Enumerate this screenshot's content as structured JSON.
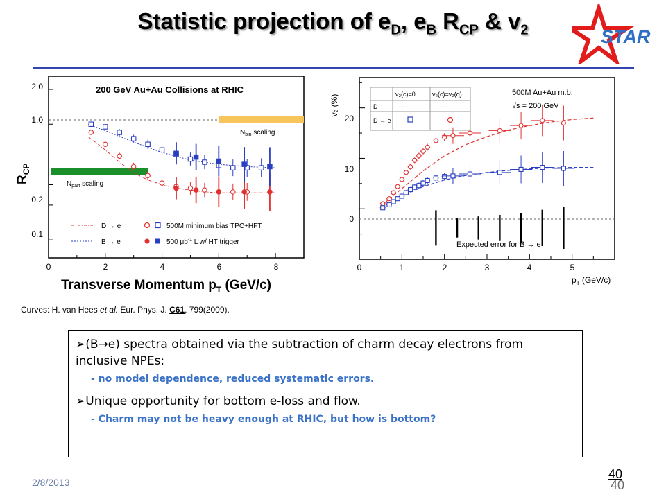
{
  "title": {
    "prefix": "Statistic projection of e",
    "sub1": "D",
    "mid1": ", e",
    "sub2": "B",
    "mid2": " R",
    "sub3": "CP",
    "mid3": " & v",
    "sub4": "2"
  },
  "logo": {
    "text": "STAR"
  },
  "left_chart": {
    "header": "200 GeV Au+Au Collisions at RHIC",
    "y_ticks": [
      "2.0",
      "1.0",
      "0.2",
      "0.1"
    ],
    "x_ticks": [
      "0",
      "2",
      "4",
      "6",
      "8"
    ],
    "ylabel_main": "R",
    "ylabel_sub": "CP",
    "xlabel": "Transverse Momentum p",
    "xlabel_sub": "T",
    "xlabel_unit": " (GeV/c)",
    "nbin_label": "N",
    "nbin_sub": "bin",
    "nbin_rest": " scaling",
    "npart_label": "N",
    "npart_sub": "part",
    "npart_rest": " scaling",
    "legend": {
      "d_curve": "D → e",
      "b_curve": "B → e",
      "open_markers": "500M minimum bias TPC+HFT",
      "closed_markers_pre": "500 μb",
      "closed_markers_sup": "-1",
      "closed_markers_post": " L w/ HT trigger"
    }
  },
  "right_chart": {
    "y_ticks": [
      "20",
      "10",
      "0"
    ],
    "x_ticks": [
      "0",
      "1",
      "2",
      "3",
      "4",
      "5"
    ],
    "ylabel": "v₂ (%)",
    "xlabel": "p",
    "xlabel_sub": "T",
    "xlabel_unit": " (GeV/c)",
    "info1": "500M Au+Au m.b.",
    "info2": "√s = 200 GeV",
    "table_h1": "v₂(c)=0",
    "table_h2": "v₂(c)=v₂(q)",
    "table_r1": "D",
    "table_r2": "D → e",
    "table_dash1": "- - - -",
    "table_dash2": "- - - -",
    "error_label": "Expected error for B → e"
  },
  "chart_data": [
    {
      "type": "scatter",
      "xlabel": "Transverse Momentum pT (GeV/c)",
      "ylabel": "RCP",
      "xlim": [
        0,
        9
      ],
      "ylim": [
        0.07,
        2.6
      ],
      "log_y": true,
      "series": [
        {
          "name": "D → e",
          "kind": "curve",
          "x": [
            1.4,
            2.0,
            2.5,
            3.0,
            3.5,
            4.0,
            4.5,
            5.0,
            5.5,
            6.0,
            6.5,
            7.0,
            7.5,
            8.0
          ],
          "y": [
            0.78,
            0.6,
            0.47,
            0.38,
            0.33,
            0.3,
            0.28,
            0.27,
            0.26,
            0.255,
            0.255,
            0.255,
            0.255,
            0.255
          ]
        },
        {
          "name": "B → e",
          "kind": "curve",
          "x": [
            1.4,
            2.0,
            3.0,
            4.0,
            5.0,
            6.0,
            7.0,
            8.0
          ],
          "y": [
            1.0,
            0.88,
            0.7,
            0.57,
            0.49,
            0.45,
            0.43,
            0.42
          ]
        },
        {
          "name": "500M minimum bias TPC+HFT",
          "kind": "open",
          "color": "#e03030",
          "x": [
            1.5,
            2.0,
            2.5,
            3.0,
            3.5,
            4.0,
            4.5,
            5.0,
            5.5,
            6.0,
            6.5,
            7.0
          ],
          "y": [
            0.85,
            0.67,
            0.53,
            0.43,
            0.36,
            0.31,
            0.29,
            0.28,
            0.27,
            0.26,
            0.26,
            0.26
          ]
        },
        {
          "name": "500M minimum bias TPC+HFT",
          "kind": "open",
          "color": "#2a3fc0",
          "x": [
            1.5,
            2.0,
            2.5,
            3.0,
            3.5,
            4.0,
            4.5,
            5.0,
            5.5,
            6.0,
            6.5,
            7.0,
            7.5
          ],
          "y": [
            1.0,
            0.95,
            0.85,
            0.75,
            0.67,
            0.6,
            0.55,
            0.5,
            0.47,
            0.44,
            0.42,
            0.42,
            0.42
          ]
        },
        {
          "name": "500 μb-1 L w/ HT trigger",
          "kind": "closed",
          "color": "#e03030",
          "x": [
            4.5,
            5.2,
            6.0,
            6.9,
            7.8
          ],
          "y": [
            0.28,
            0.27,
            0.26,
            0.26,
            0.26
          ]
        },
        {
          "name": "500 μb-1 L w/ HT trigger",
          "kind": "closed",
          "color": "#2a3fc0",
          "x": [
            4.5,
            5.2,
            6.0,
            6.9,
            7.8
          ],
          "y": [
            0.56,
            0.52,
            0.48,
            0.45,
            0.43
          ]
        }
      ]
    },
    {
      "type": "scatter",
      "xlabel": "pT (GeV/c)",
      "ylabel": "v2 (%)",
      "xlim": [
        0,
        6
      ],
      "ylim": [
        -10,
        26
      ],
      "series": [
        {
          "name": "v2(c)=v2(q)",
          "kind": "curve",
          "color": "#e03030",
          "x": [
            0.5,
            1.0,
            1.5,
            2.0,
            2.5,
            3.0,
            3.5,
            4.0,
            4.5,
            5.0,
            5.5
          ],
          "y": [
            0.5,
            4.0,
            7.5,
            10.5,
            12.7,
            14.3,
            15.6,
            16.5,
            17.2,
            17.7,
            18.0
          ]
        },
        {
          "name": "v2(c)=0",
          "kind": "curve",
          "color": "#2a3fc0",
          "x": [
            0.5,
            1.0,
            1.5,
            2.0,
            2.5,
            3.0,
            3.5,
            4.0,
            4.5,
            5.0,
            5.5
          ],
          "y": [
            0.3,
            2.6,
            4.4,
            5.7,
            6.6,
            7.2,
            7.6,
            7.9,
            8.1,
            8.2,
            8.2
          ]
        },
        {
          "name": "v2(c)=v2(q)",
          "kind": "open-circle",
          "color": "#e03030",
          "x": [
            0.55,
            0.7,
            0.8,
            0.9,
            1.0,
            1.1,
            1.2,
            1.3,
            1.4,
            1.5,
            1.6,
            1.8,
            2.0,
            2.2,
            2.6,
            3.3,
            3.8,
            4.3,
            4.8
          ],
          "y": [
            1.0,
            2.0,
            3.2,
            4.4,
            5.8,
            7.2,
            8.3,
            9.6,
            10.5,
            11.4,
            12.2,
            13.5,
            14.2,
            14.5,
            15.0,
            15.5,
            16.5,
            17.5,
            17.0
          ]
        },
        {
          "name": "v2(c)=0",
          "kind": "open-square",
          "color": "#2a3fc0",
          "x": [
            0.55,
            0.7,
            0.8,
            0.9,
            1.0,
            1.1,
            1.2,
            1.3,
            1.4,
            1.5,
            1.6,
            1.8,
            2.0,
            2.2,
            2.6,
            3.3,
            3.8,
            4.3,
            4.8
          ],
          "y": [
            0.2,
            0.8,
            1.4,
            2.0,
            2.5,
            3.2,
            3.8,
            4.3,
            4.6,
            5.1,
            5.6,
            6.1,
            6.4,
            6.5,
            6.9,
            7.2,
            7.8,
            8.2,
            8.0
          ]
        },
        {
          "name": "Expected error for B → e",
          "kind": "error-bars",
          "x": [
            1.8,
            2.3,
            2.8,
            3.3,
            3.8,
            4.3,
            4.8
          ],
          "half_height": [
            3.5,
            1.9,
            2.3,
            2.6,
            2.9,
            3.6,
            4.2
          ]
        }
      ]
    }
  ],
  "caption": {
    "pre": "Curves:  H. van Hees ",
    "etal": "et al.",
    "mid": "  Eur. Phys. J. ",
    "vol": "C61",
    "post": ", 799(2009)."
  },
  "notes": {
    "b1_mid": "(B",
    "b1_arrow": "→",
    "b1_post": "e) spectra obtained via the subtraction of charm decay electrons from inclusive NPEs:",
    "s1": "- no model dependence, reduced systematic errors.",
    "b2": "Unique opportunity for bottom e-loss and flow.",
    "s2": "- Charm may not be heavy enough at RHIC, but how is bottom?",
    "marker": "➢"
  },
  "footer": {
    "date": "2/8/2013",
    "page_top": "40",
    "page_bottom": "40"
  }
}
